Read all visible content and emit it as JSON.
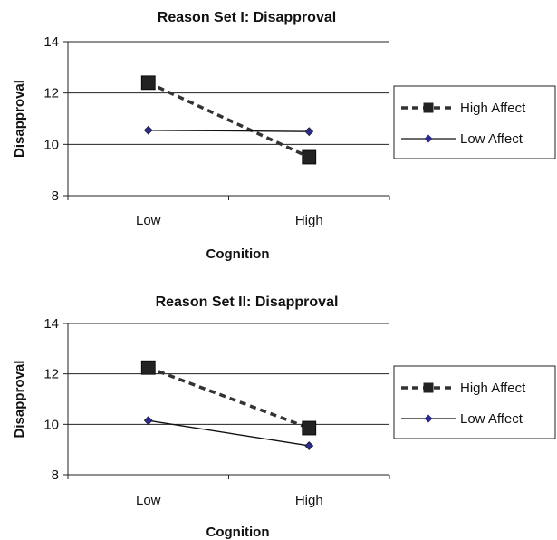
{
  "chart_data": [
    {
      "type": "line",
      "title": "Reason Set I:  Disapproval",
      "xlabel": "Cognition",
      "ylabel": "Disapproval",
      "categories": [
        "Low",
        "High"
      ],
      "ylim": [
        8,
        14
      ],
      "yticks": [
        8,
        10,
        12,
        14
      ],
      "grid": true,
      "legend_position": "right",
      "series": [
        {
          "name": "High Affect",
          "values": [
            12.4,
            9.5
          ],
          "style": "dashed",
          "marker": "square",
          "color": "#333333",
          "marker_color": "#222222"
        },
        {
          "name": "Low Affect",
          "values": [
            10.55,
            10.5
          ],
          "style": "solid",
          "marker": "diamond",
          "color": "#111111",
          "marker_color": "#2b2b8c"
        }
      ]
    },
    {
      "type": "line",
      "title": "Reason Set II: Disapproval",
      "xlabel": "Cognition",
      "ylabel": "Disapproval",
      "categories": [
        "Low",
        "High"
      ],
      "ylim": [
        8,
        14
      ],
      "yticks": [
        8,
        10,
        12,
        14
      ],
      "grid": true,
      "legend_position": "right",
      "series": [
        {
          "name": "High Affect",
          "values": [
            12.25,
            9.85
          ],
          "style": "dashed",
          "marker": "square",
          "color": "#333333",
          "marker_color": "#222222"
        },
        {
          "name": "Low Affect",
          "values": [
            10.15,
            9.15
          ],
          "style": "solid",
          "marker": "diamond",
          "color": "#111111",
          "marker_color": "#2b2b8c"
        }
      ]
    }
  ]
}
